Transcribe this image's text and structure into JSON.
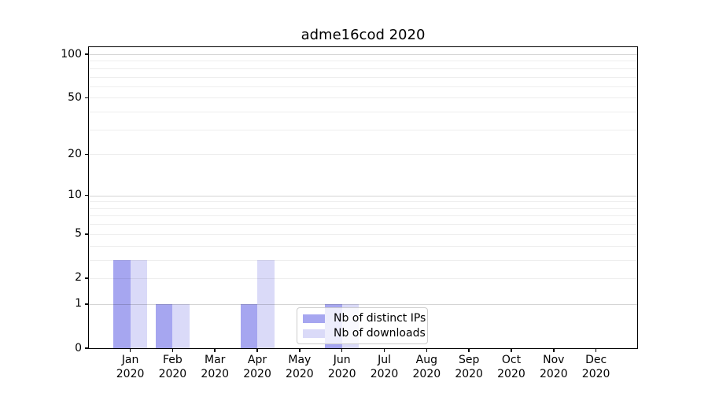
{
  "chart_data": {
    "type": "bar",
    "title": "adme16cod 2020",
    "categories": [
      "Jan",
      "Feb",
      "Mar",
      "Apr",
      "May",
      "Jun",
      "Jul",
      "Aug",
      "Sep",
      "Oct",
      "Nov",
      "Dec"
    ],
    "category_year": "2020",
    "series": [
      {
        "name": "Nb of distinct IPs",
        "color": "#a6a6f0",
        "values": [
          3,
          1,
          0,
          1,
          0,
          1,
          0,
          0,
          0,
          0,
          0,
          0
        ]
      },
      {
        "name": "Nb of downloads",
        "color": "#dadaf8",
        "values": [
          3,
          1,
          0,
          3,
          0,
          1,
          0,
          0,
          0,
          0,
          0,
          0
        ]
      }
    ],
    "y_axis": {
      "scale": "log1p",
      "ticks": [
        0,
        1,
        2,
        5,
        10,
        20,
        50,
        100
      ],
      "major_gridlines": [
        1,
        10,
        100
      ],
      "minor_gridlines": [
        2,
        3,
        4,
        5,
        6,
        7,
        8,
        9,
        20,
        30,
        40,
        50,
        60,
        70,
        80,
        90
      ],
      "ylim": [
        0,
        112
      ]
    },
    "legend_position": "lower center",
    "grid": "on"
  }
}
